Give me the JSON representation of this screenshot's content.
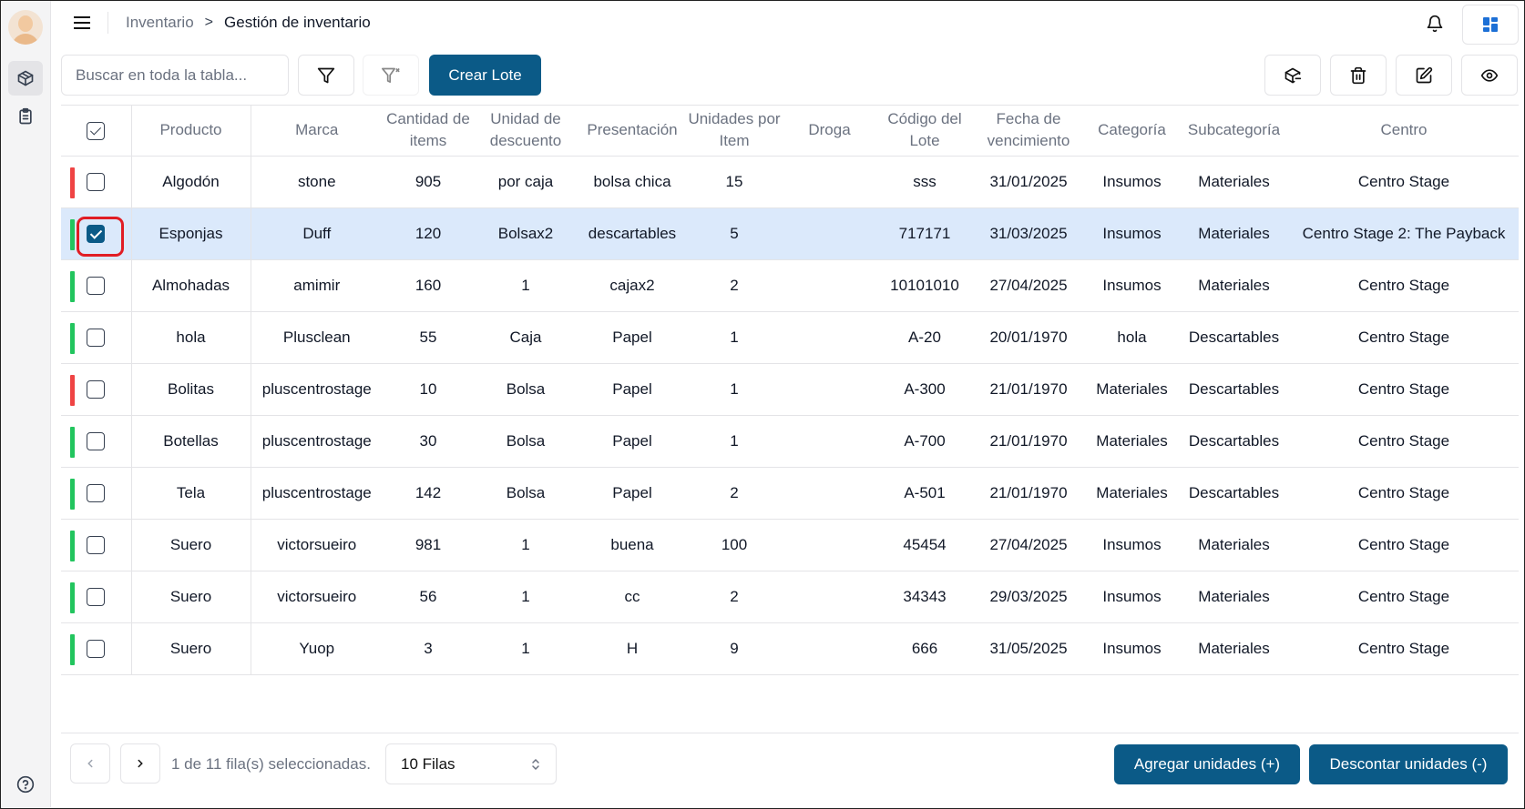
{
  "header": {
    "breadcrumb_parent": "Inventario",
    "breadcrumb_separator": ">",
    "breadcrumb_current": "Gestión de inventario"
  },
  "toolbar": {
    "search_placeholder": "Buscar en toda la tabla...",
    "create_lot_label": "Crear Lote"
  },
  "table": {
    "columns": [
      "Producto",
      "Marca",
      "Cantidad de items",
      "Unidad de descuento",
      "Presentación",
      "Unidades por Item",
      "Droga",
      "Código del Lote",
      "Fecha de vencimiento",
      "Categoría",
      "Subcategoría",
      "Centro"
    ],
    "rows": [
      {
        "status": "red",
        "checked": false,
        "producto": "Algodón",
        "marca": "stone",
        "cantidad": "905",
        "unidad": "por caja",
        "presentacion": "bolsa chica",
        "unidades_item": "15",
        "droga": "",
        "codigo": "sss",
        "fecha": "31/01/2025",
        "categoria": "Insumos",
        "subcategoria": "Materiales",
        "centro": "Centro Stage"
      },
      {
        "status": "green",
        "checked": true,
        "producto": "Esponjas",
        "marca": "Duff",
        "cantidad": "120",
        "unidad": "Bolsax2",
        "presentacion": "descartables",
        "unidades_item": "5",
        "droga": "",
        "codigo": "717171",
        "fecha": "31/03/2025",
        "categoria": "Insumos",
        "subcategoria": "Materiales",
        "centro": "Centro Stage 2: The Payback"
      },
      {
        "status": "green",
        "checked": false,
        "producto": "Almohadas",
        "marca": "amimir",
        "cantidad": "160",
        "unidad": "1",
        "presentacion": "cajax2",
        "unidades_item": "2",
        "droga": "",
        "codigo": "10101010",
        "fecha": "27/04/2025",
        "categoria": "Insumos",
        "subcategoria": "Materiales",
        "centro": "Centro Stage"
      },
      {
        "status": "green",
        "checked": false,
        "producto": "hola",
        "marca": "Plusclean",
        "cantidad": "55",
        "unidad": "Caja",
        "presentacion": "Papel",
        "unidades_item": "1",
        "droga": "",
        "codigo": "A-20",
        "fecha": "20/01/1970",
        "categoria": "hola",
        "subcategoria": "Descartables",
        "centro": "Centro Stage"
      },
      {
        "status": "red",
        "checked": false,
        "producto": "Bolitas",
        "marca": "pluscentrostage",
        "cantidad": "10",
        "unidad": "Bolsa",
        "presentacion": "Papel",
        "unidades_item": "1",
        "droga": "",
        "codigo": "A-300",
        "fecha": "21/01/1970",
        "categoria": "Materiales",
        "subcategoria": "Descartables",
        "centro": "Centro Stage"
      },
      {
        "status": "green",
        "checked": false,
        "producto": "Botellas",
        "marca": "pluscentrostage",
        "cantidad": "30",
        "unidad": "Bolsa",
        "presentacion": "Papel",
        "unidades_item": "1",
        "droga": "",
        "codigo": "A-700",
        "fecha": "21/01/1970",
        "categoria": "Materiales",
        "subcategoria": "Descartables",
        "centro": "Centro Stage"
      },
      {
        "status": "green",
        "checked": false,
        "producto": "Tela",
        "marca": "pluscentrostage",
        "cantidad": "142",
        "unidad": "Bolsa",
        "presentacion": "Papel",
        "unidades_item": "2",
        "droga": "",
        "codigo": "A-501",
        "fecha": "21/01/1970",
        "categoria": "Materiales",
        "subcategoria": "Descartables",
        "centro": "Centro Stage"
      },
      {
        "status": "green",
        "checked": false,
        "producto": "Suero",
        "marca": "victorsueiro",
        "cantidad": "981",
        "unidad": "1",
        "presentacion": "buena",
        "unidades_item": "100",
        "droga": "",
        "codigo": "45454",
        "fecha": "27/04/2025",
        "categoria": "Insumos",
        "subcategoria": "Materiales",
        "centro": "Centro Stage"
      },
      {
        "status": "green",
        "checked": false,
        "producto": "Suero",
        "marca": "victorsueiro",
        "cantidad": "56",
        "unidad": "1",
        "presentacion": "cc",
        "unidades_item": "2",
        "droga": "",
        "codigo": "34343",
        "fecha": "29/03/2025",
        "categoria": "Insumos",
        "subcategoria": "Materiales",
        "centro": "Centro Stage"
      },
      {
        "status": "green",
        "checked": false,
        "producto": "Suero",
        "marca": "Yuop",
        "cantidad": "3",
        "unidad": "1",
        "presentacion": "H",
        "unidades_item": "9",
        "droga": "",
        "codigo": "666",
        "fecha": "31/05/2025",
        "categoria": "Insumos",
        "subcategoria": "Materiales",
        "centro": "Centro Stage"
      }
    ]
  },
  "footer": {
    "selection_text": "1 de 11 fila(s) seleccionadas.",
    "rows_per_page": "10 Filas",
    "add_units_label": "Agregar unidades (+)",
    "discount_units_label": "Descontar unidades (-)"
  },
  "colors": {
    "primary": "#0b5a87",
    "status_red": "#ef4444",
    "status_green": "#22c55e",
    "selected_row": "#dbe9fb",
    "highlight_ring": "#e11d24"
  },
  "icons": {
    "sidebar": [
      "box-icon",
      "clipboard-icon",
      "help-circle-icon"
    ],
    "toolbar": [
      "filter-icon",
      "filter-clear-icon"
    ],
    "actions": [
      "package-minus-icon",
      "trash-icon",
      "edit-icon",
      "eye-icon"
    ]
  }
}
